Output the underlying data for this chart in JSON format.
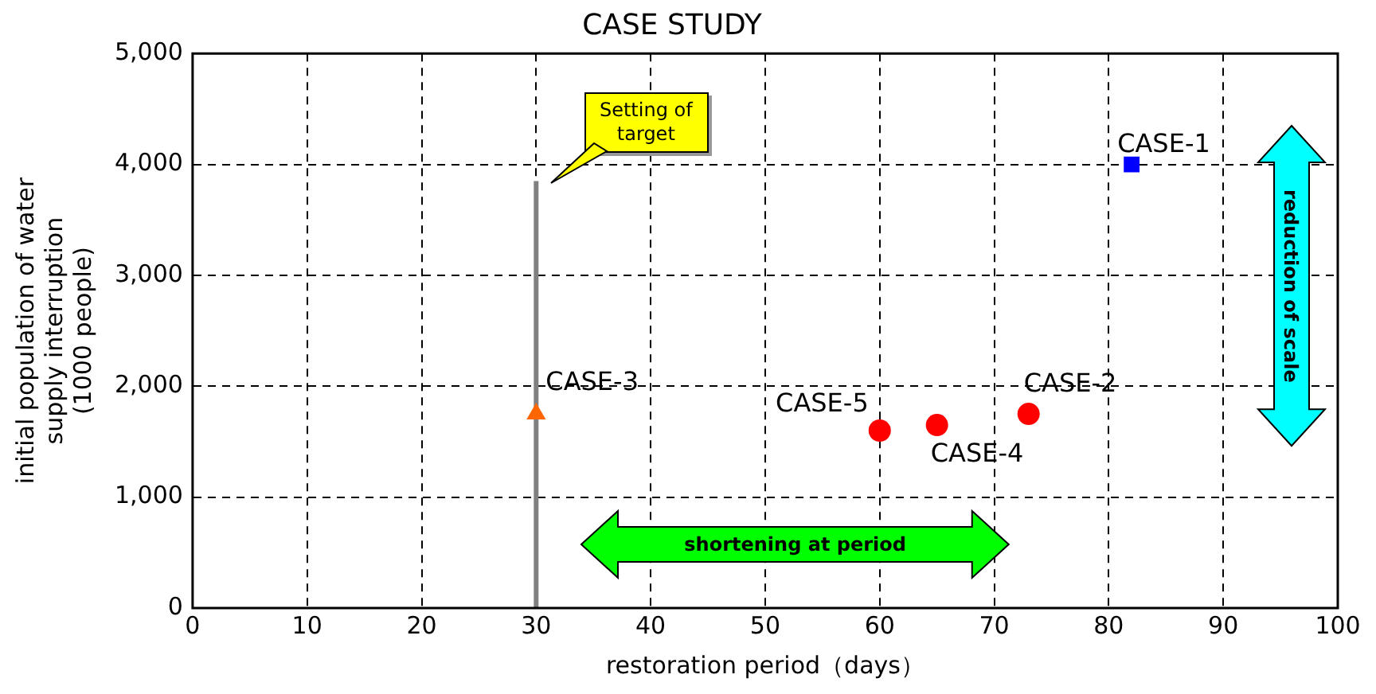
{
  "chart_data": {
    "type": "scatter",
    "title": "CASE STUDY",
    "xlabel": "restoration period（days）",
    "ylabel": "initial population of water\nsupply interruption\n(1000 people)",
    "xlim": [
      0,
      100
    ],
    "xticks": [
      0,
      10,
      20,
      30,
      40,
      50,
      60,
      70,
      80,
      90,
      100
    ],
    "ylim": [
      0,
      5000
    ],
    "yticks": [
      {
        "value": 0,
        "label": "0"
      },
      {
        "value": 1000,
        "label": "1,000"
      },
      {
        "value": 2000,
        "label": "2,000"
      },
      {
        "value": 3000,
        "label": "3,000"
      },
      {
        "value": 4000,
        "label": "4,000"
      },
      {
        "value": 5000,
        "label": "5,000"
      }
    ],
    "grid": true,
    "legend": false,
    "series": [
      {
        "type": "line",
        "color": "#808080",
        "marker": "none",
        "x": [
          30,
          30
        ],
        "values": [
          0,
          3850
        ]
      },
      {
        "name": "CASE-1",
        "color": "#0000ff",
        "marker": "square",
        "x": [
          82
        ],
        "values": [
          4000
        ]
      },
      {
        "name": "CASE-2",
        "color": "#ff0000",
        "marker": "circle",
        "x": [
          73
        ],
        "values": [
          1750
        ]
      },
      {
        "name": "CASE-3",
        "color": "#ff6600",
        "marker": "triangle",
        "x": [
          30
        ],
        "values": [
          1750
        ]
      },
      {
        "name": "CASE-4",
        "color": "#ff0000",
        "marker": "circle",
        "x": [
          65
        ],
        "values": [
          1650
        ]
      },
      {
        "name": "CASE-5",
        "color": "#ff0000",
        "marker": "circle",
        "x": [
          60
        ],
        "values": [
          1600
        ]
      }
    ],
    "annotations": [
      "Setting of target",
      "shortening at period",
      "reduction of scale"
    ]
  }
}
